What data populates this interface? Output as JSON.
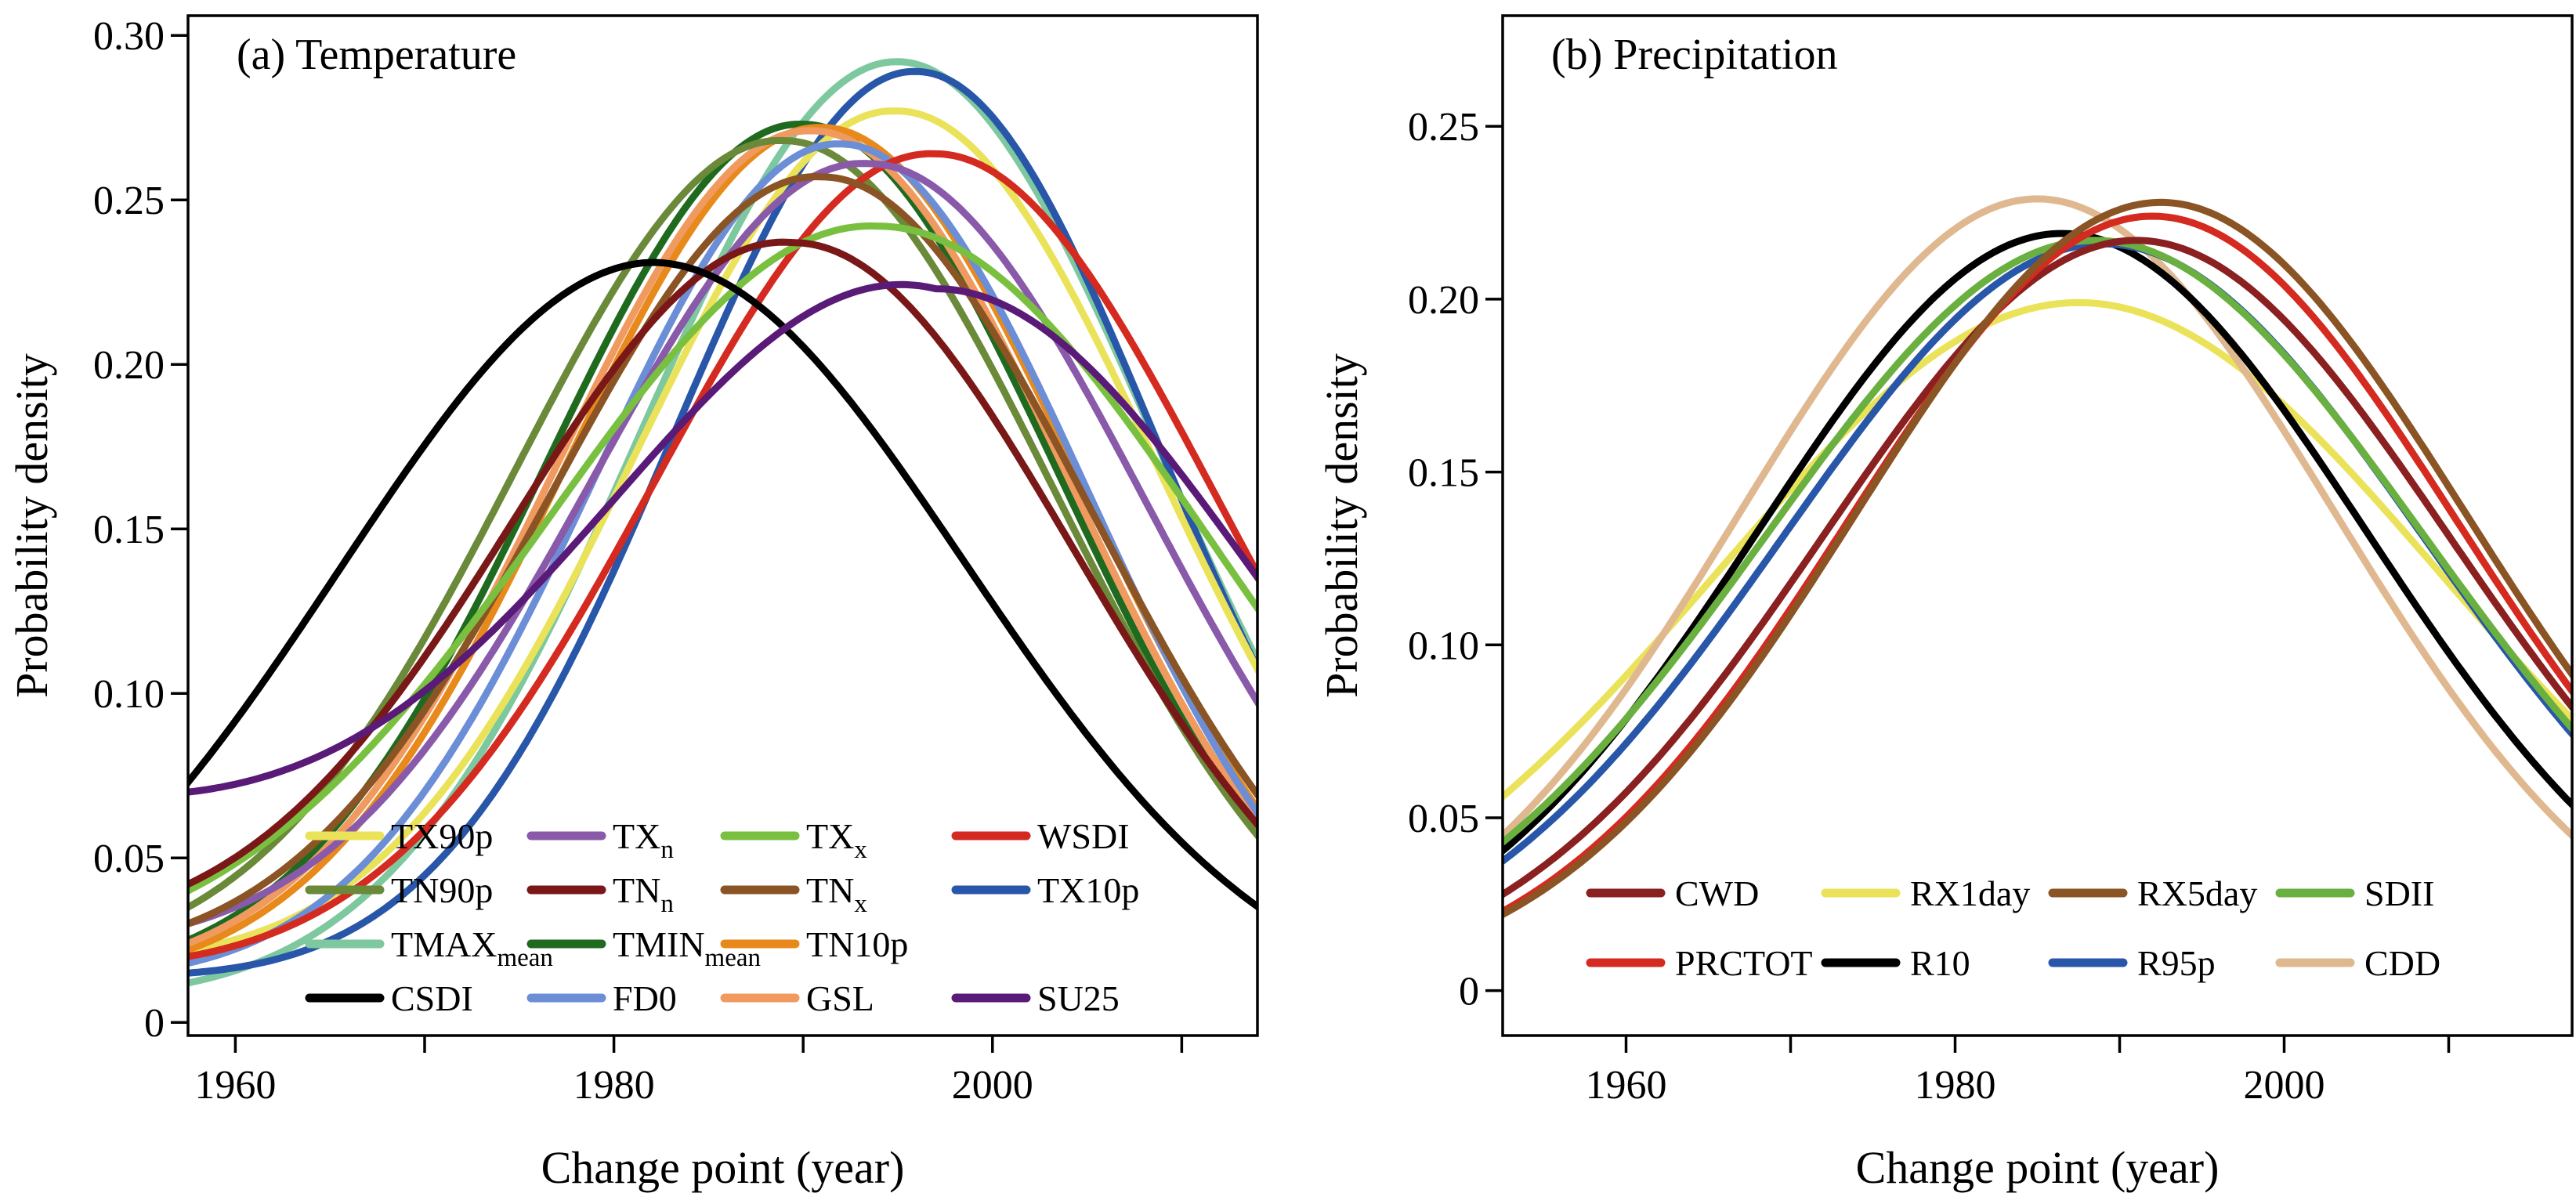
{
  "chart_data": [
    {
      "type": "line",
      "title": "(a) Temperature",
      "xlabel": "Change point (year)",
      "ylabel": "Probability density",
      "xlim": [
        1957.5,
        2014
      ],
      "ylim": [
        -0.004,
        0.306
      ],
      "xticks": [
        1960,
        1970,
        1980,
        1990,
        2000,
        2010
      ],
      "xtick_labels": [
        "1960",
        "",
        "1980",
        "",
        "2000",
        ""
      ],
      "yticks": [
        0,
        0.05,
        0.1,
        0.15,
        0.2,
        0.25,
        0.3
      ],
      "ytick_labels": [
        "0",
        "0.05",
        "0.10",
        "0.15",
        "0.20",
        "0.25",
        "0.30"
      ],
      "grid": false,
      "legend": "bottom",
      "legend_rows": [
        [
          {
            "name": "TX90p",
            "sub": ""
          },
          {
            "name": "TX",
            "sub": "n"
          },
          {
            "name": "TX",
            "sub": "x"
          },
          {
            "name": "WSDI",
            "sub": ""
          }
        ],
        [
          {
            "name": "TN90p",
            "sub": ""
          },
          {
            "name": "TN",
            "sub": "n"
          },
          {
            "name": "TN",
            "sub": "x"
          },
          {
            "name": "TX10p",
            "sub": ""
          }
        ],
        [
          {
            "name": "TMAX",
            "sub": "mean"
          },
          {
            "name": "TMIN",
            "sub": "mean"
          },
          {
            "name": "TN10p",
            "sub": ""
          }
        ],
        [
          {
            "name": "CSDI",
            "sub": ""
          },
          {
            "name": "FD0",
            "sub": ""
          },
          {
            "name": "GSL",
            "sub": ""
          },
          {
            "name": "SU25",
            "sub": ""
          }
        ]
      ],
      "series": [
        {
          "name": "TMAX_mean",
          "color": "#7ec8a0",
          "mu": 1995.0,
          "sigma": 13.6,
          "peak": 0.292,
          "tail_start": 0.012
        },
        {
          "name": "TX10p",
          "color": "#2856a8",
          "mu": 1996.0,
          "sigma": 12.8,
          "peak": 0.289,
          "tail_start": 0.015
        },
        {
          "name": "TX90p",
          "color": "#eae35a",
          "mu": 1995.0,
          "sigma": 13.8,
          "peak": 0.277,
          "tail_start": 0.022
        },
        {
          "name": "TMIN_mean",
          "color": "#206a20",
          "mu": 1990.0,
          "sigma": 13.6,
          "peak": 0.273,
          "tail_start": 0.025
        },
        {
          "name": "TN10p",
          "color": "#e8891c",
          "mu": 1991.0,
          "sigma": 13.6,
          "peak": 0.272,
          "tail_start": 0.022
        },
        {
          "name": "GSL",
          "color": "#f09a60",
          "mu": 1990.5,
          "sigma": 13.6,
          "peak": 0.271,
          "tail_start": 0.024
        },
        {
          "name": "TN90p",
          "color": "#6a8a3a",
          "mu": 1989.0,
          "sigma": 14.2,
          "peak": 0.268,
          "tail_start": 0.035
        },
        {
          "name": "FD0",
          "color": "#6b8ed6",
          "mu": 1992.0,
          "sigma": 13.0,
          "peak": 0.267,
          "tail_start": 0.018
        },
        {
          "name": "WSDI",
          "color": "#d42a20",
          "mu": 1997.0,
          "sigma": 14.8,
          "peak": 0.264,
          "tail_start": 0.02
        },
        {
          "name": "TX_n",
          "color": "#8a5aaa",
          "mu": 1993.5,
          "sigma": 14.6,
          "peak": 0.261,
          "tail_start": 0.03
        },
        {
          "name": "TN_x",
          "color": "#8a5424",
          "mu": 1991.0,
          "sigma": 14.2,
          "peak": 0.257,
          "tail_start": 0.03
        },
        {
          "name": "TX_x",
          "color": "#7ac040",
          "mu": 1994.0,
          "sigma": 17.5,
          "peak": 0.242,
          "tail_start": 0.04
        },
        {
          "name": "TN_n",
          "color": "#7a1818",
          "mu": 1989.5,
          "sigma": 14.8,
          "peak": 0.237,
          "tail_start": 0.042
        },
        {
          "name": "CSDI",
          "color": "#000000",
          "mu": 1982.0,
          "sigma": 16.5,
          "peak": 0.231,
          "tail_start": 0.073
        },
        {
          "name": "SU25",
          "color": "#5a1a78",
          "mu": 1997.0,
          "sigma": 17.0,
          "peak": 0.223,
          "tail_start": 0.07
        }
      ]
    },
    {
      "type": "line",
      "title": "(b) Precipitation",
      "xlabel": "Change point (year)",
      "ylabel": "Probability density",
      "xlim": [
        1952.5,
        2017.5
      ],
      "ylim": [
        -0.013,
        0.282
      ],
      "xticks": [
        1960,
        1970,
        1980,
        1990,
        2000,
        2010
      ],
      "xtick_labels": [
        "1960",
        "",
        "1980",
        "",
        "2000",
        ""
      ],
      "yticks": [
        0,
        0.05,
        0.1,
        0.15,
        0.2,
        0.25
      ],
      "ytick_labels": [
        "0",
        "0.05",
        "0.10",
        "0.15",
        "0.20",
        "0.25"
      ],
      "grid": false,
      "legend": "bottom",
      "legend_rows": [
        [
          {
            "name": "CWD",
            "sub": ""
          },
          {
            "name": "RX1day",
            "sub": ""
          },
          {
            "name": "RX5day",
            "sub": ""
          },
          {
            "name": "SDII",
            "sub": ""
          }
        ],
        [
          {
            "name": "PRCTOT",
            "sub": ""
          },
          {
            "name": "R10",
            "sub": ""
          },
          {
            "name": "R95p",
            "sub": ""
          },
          {
            "name": "CDD",
            "sub": ""
          }
        ]
      ],
      "series": [
        {
          "name": "RX1day",
          "color": "#eae35a",
          "mu": 1987.5,
          "sigma": 22.0,
          "peak": 0.199
        },
        {
          "name": "CDD",
          "color": "#e0b890",
          "mu": 1985.0,
          "sigma": 18.0,
          "peak": 0.229
        },
        {
          "name": "R10",
          "color": "#000000",
          "mu": 1986.5,
          "sigma": 18.5,
          "peak": 0.219
        },
        {
          "name": "R95p",
          "color": "#2856a8",
          "mu": 1989.0,
          "sigma": 19.5,
          "peak": 0.216
        },
        {
          "name": "SDII",
          "color": "#6ab040",
          "mu": 1988.5,
          "sigma": 20.0,
          "peak": 0.217
        },
        {
          "name": "CWD",
          "color": "#8a2020",
          "mu": 1991.0,
          "sigma": 19.0,
          "peak": 0.217
        },
        {
          "name": "PRCTOT",
          "color": "#d42a20",
          "mu": 1992.0,
          "sigma": 18.5,
          "peak": 0.224
        },
        {
          "name": "RX5day",
          "color": "#8a5424",
          "mu": 1992.5,
          "sigma": 18.5,
          "peak": 0.228
        }
      ]
    }
  ]
}
